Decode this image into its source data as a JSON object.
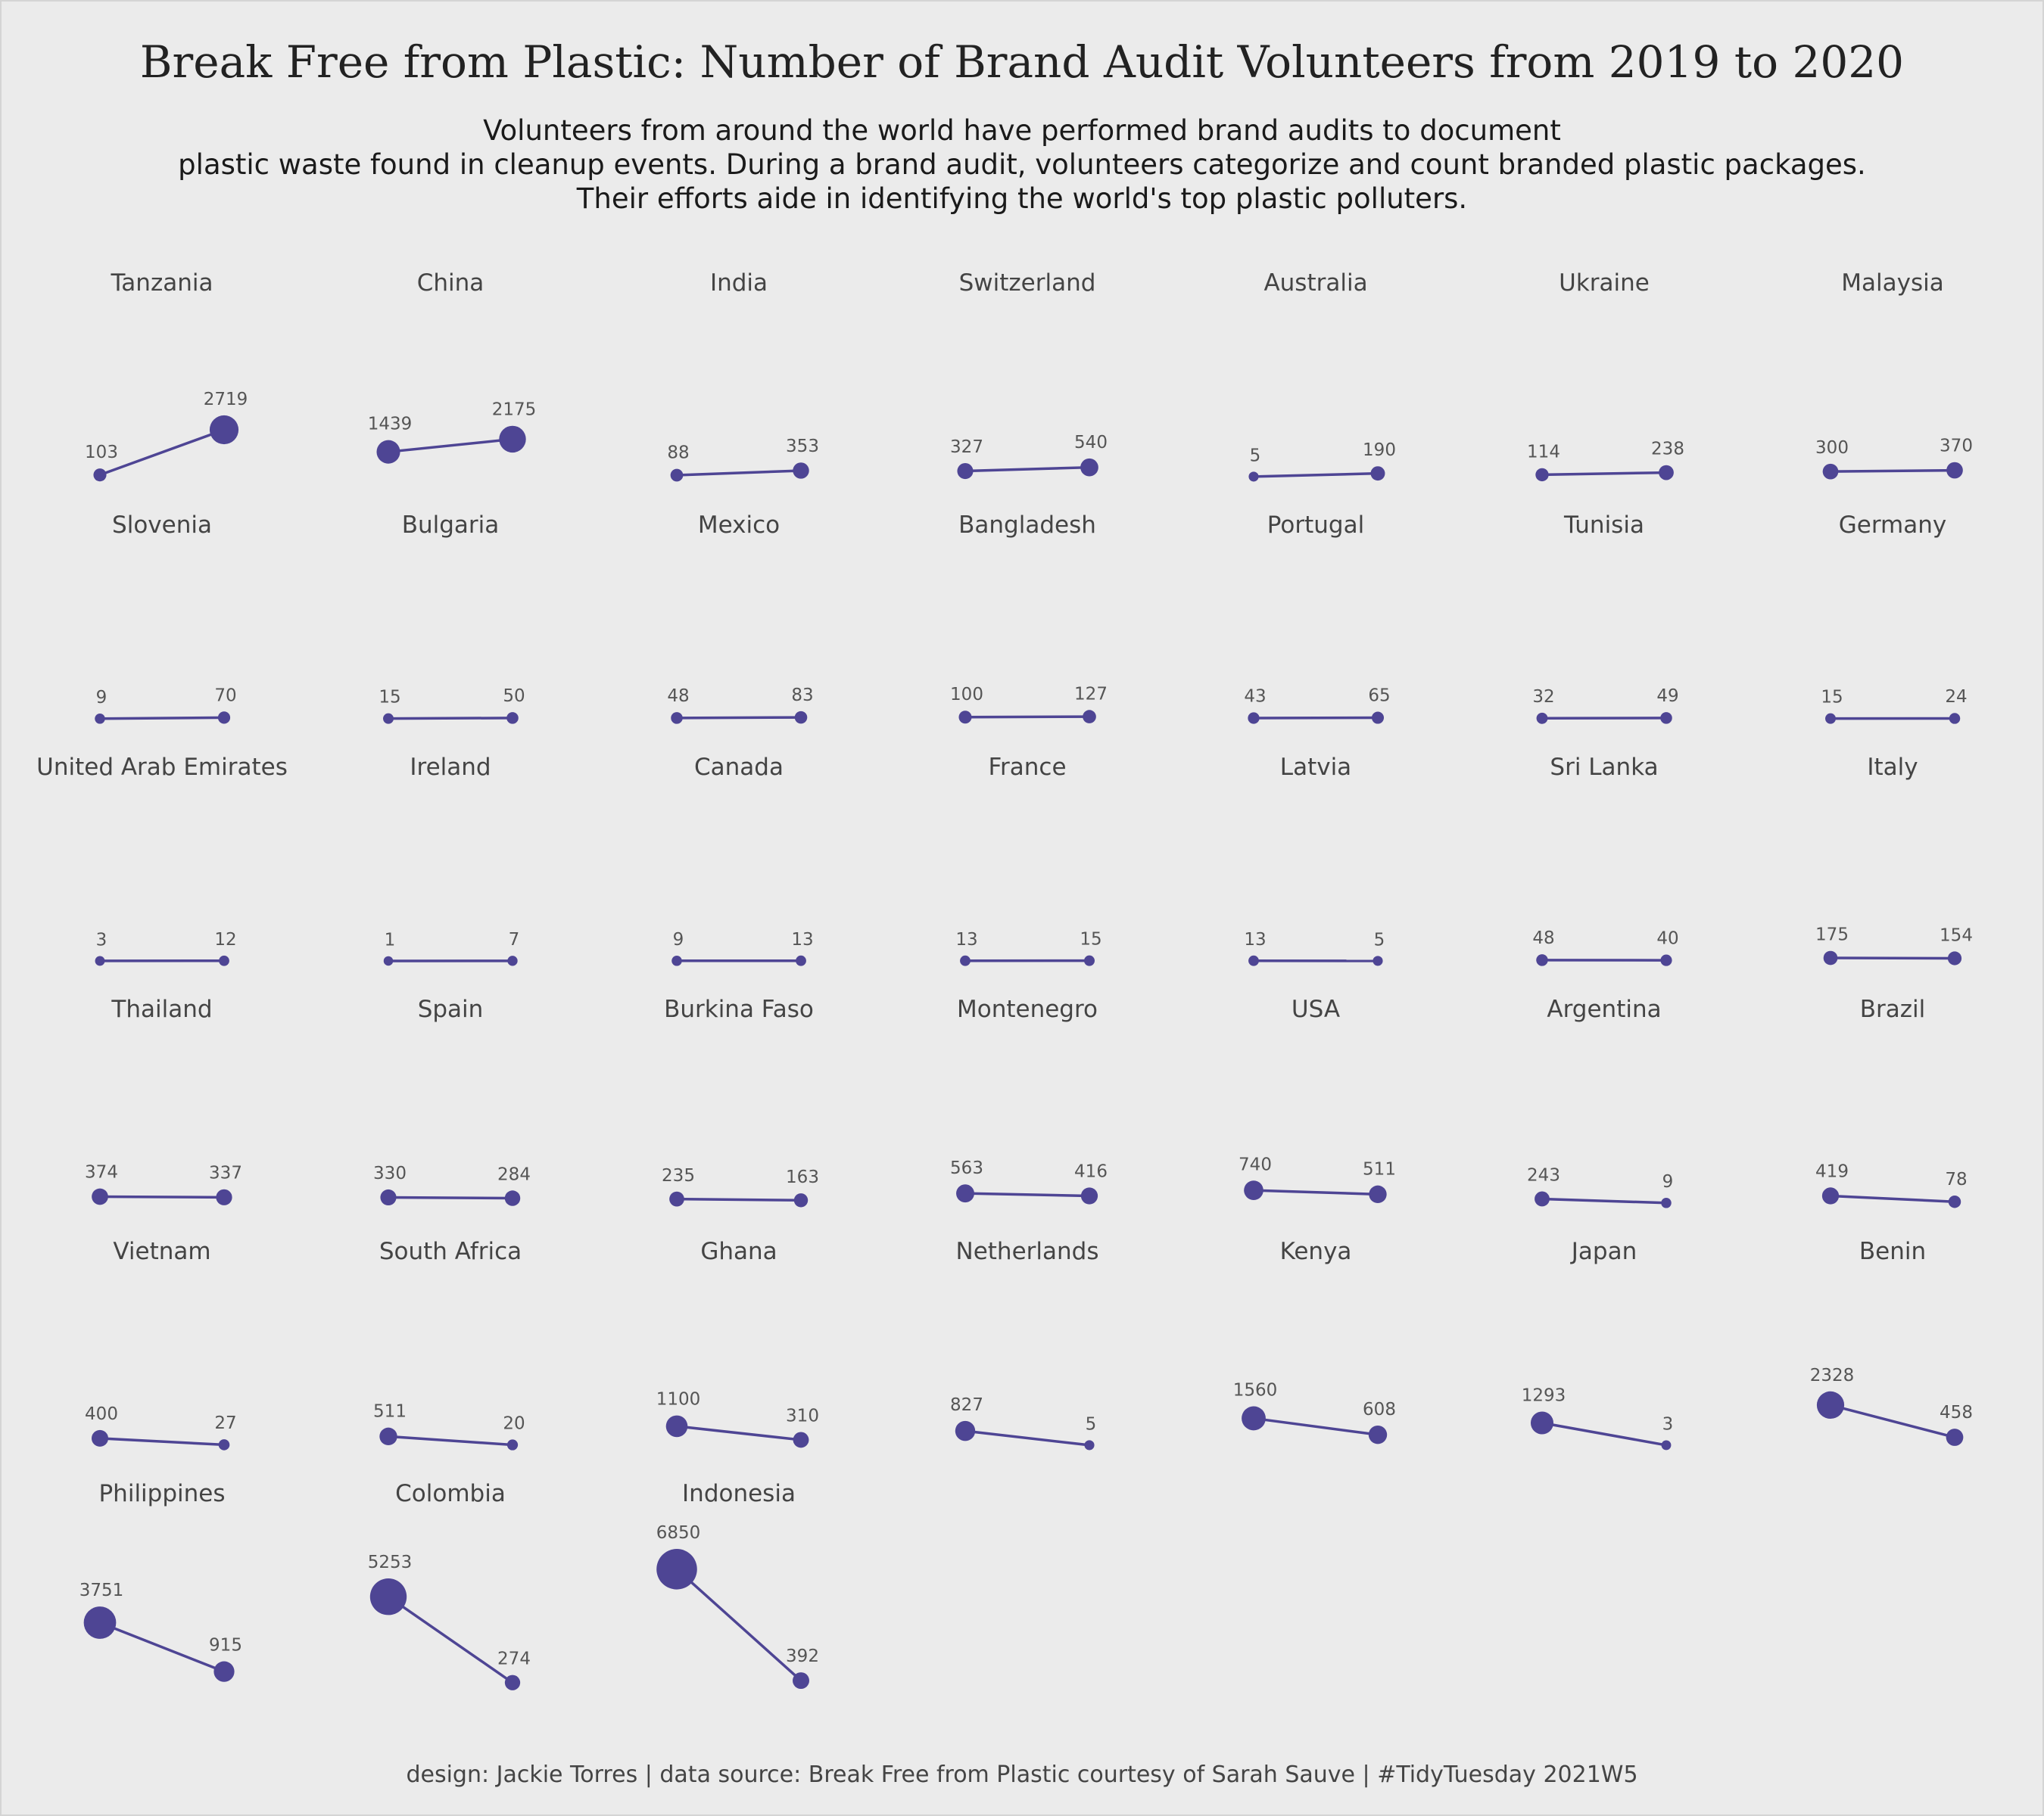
{
  "title": "Break Free from Plastic: Number of Brand Audit Volunteers from 2019 to 2020",
  "subtitle_lines": [
    "Volunteers from around the world have performed brand audits to document",
    "plastic waste found in cleanup events. During a brand audit, volunteers categorize and count branded plastic packages.",
    "Their efforts aide in identifying the world's top plastic polluters."
  ],
  "caption": "design: Jackie Torres | data source:  Break Free from Plastic courtesy of Sarah Sauve | #TidyTuesday 2021W5",
  "colors": {
    "accent": "#4e4594",
    "background": "#ebebeb"
  },
  "chart_data": {
    "type": "line",
    "layout": "small-multiples",
    "columns": 7,
    "x": [
      "2019",
      "2020"
    ],
    "ylim": [
      0,
      7000
    ],
    "grid": false,
    "series": [
      {
        "name": "Tanzania",
        "values": [
          103,
          2719
        ]
      },
      {
        "name": "China",
        "values": [
          1439,
          2175
        ]
      },
      {
        "name": "India",
        "values": [
          88,
          353
        ]
      },
      {
        "name": "Switzerland",
        "values": [
          327,
          540
        ]
      },
      {
        "name": "Australia",
        "values": [
          5,
          190
        ]
      },
      {
        "name": "Ukraine",
        "values": [
          114,
          238
        ]
      },
      {
        "name": "Malaysia",
        "values": [
          300,
          370
        ]
      },
      {
        "name": "Slovenia",
        "values": [
          9,
          70
        ]
      },
      {
        "name": "Bulgaria",
        "values": [
          15,
          50
        ]
      },
      {
        "name": "Mexico",
        "values": [
          48,
          83
        ]
      },
      {
        "name": "Bangladesh",
        "values": [
          100,
          127
        ]
      },
      {
        "name": "Portugal",
        "values": [
          43,
          65
        ]
      },
      {
        "name": "Tunisia",
        "values": [
          32,
          49
        ]
      },
      {
        "name": "Germany",
        "values": [
          15,
          24
        ]
      },
      {
        "name": "United Arab Emirates",
        "values": [
          3,
          12
        ]
      },
      {
        "name": "Ireland",
        "values": [
          1,
          7
        ]
      },
      {
        "name": "Canada",
        "values": [
          9,
          13
        ]
      },
      {
        "name": "France",
        "values": [
          13,
          15
        ]
      },
      {
        "name": "Latvia",
        "values": [
          13,
          5
        ]
      },
      {
        "name": "Sri Lanka",
        "values": [
          48,
          40
        ]
      },
      {
        "name": "Italy",
        "values": [
          175,
          154
        ]
      },
      {
        "name": "Thailand",
        "values": [
          374,
          337
        ]
      },
      {
        "name": "Spain",
        "values": [
          330,
          284
        ]
      },
      {
        "name": "Burkina Faso",
        "values": [
          235,
          163
        ]
      },
      {
        "name": "Montenegro",
        "values": [
          563,
          416
        ]
      },
      {
        "name": "USA",
        "values": [
          740,
          511
        ]
      },
      {
        "name": "Argentina",
        "values": [
          243,
          9
        ]
      },
      {
        "name": "Brazil",
        "values": [
          419,
          78
        ]
      },
      {
        "name": "Vietnam",
        "values": [
          400,
          27
        ]
      },
      {
        "name": "South Africa",
        "values": [
          511,
          20
        ]
      },
      {
        "name": "Ghana",
        "values": [
          1100,
          310
        ]
      },
      {
        "name": "Netherlands",
        "values": [
          827,
          5
        ]
      },
      {
        "name": "Kenya",
        "values": [
          1560,
          608
        ]
      },
      {
        "name": "Japan",
        "values": [
          1293,
          3
        ]
      },
      {
        "name": "Benin",
        "values": [
          2328,
          458
        ]
      },
      {
        "name": "Philippines",
        "values": [
          3751,
          915
        ]
      },
      {
        "name": "Colombia",
        "values": [
          5253,
          274
        ]
      },
      {
        "name": "Indonesia",
        "values": [
          6850,
          392
        ]
      }
    ]
  }
}
